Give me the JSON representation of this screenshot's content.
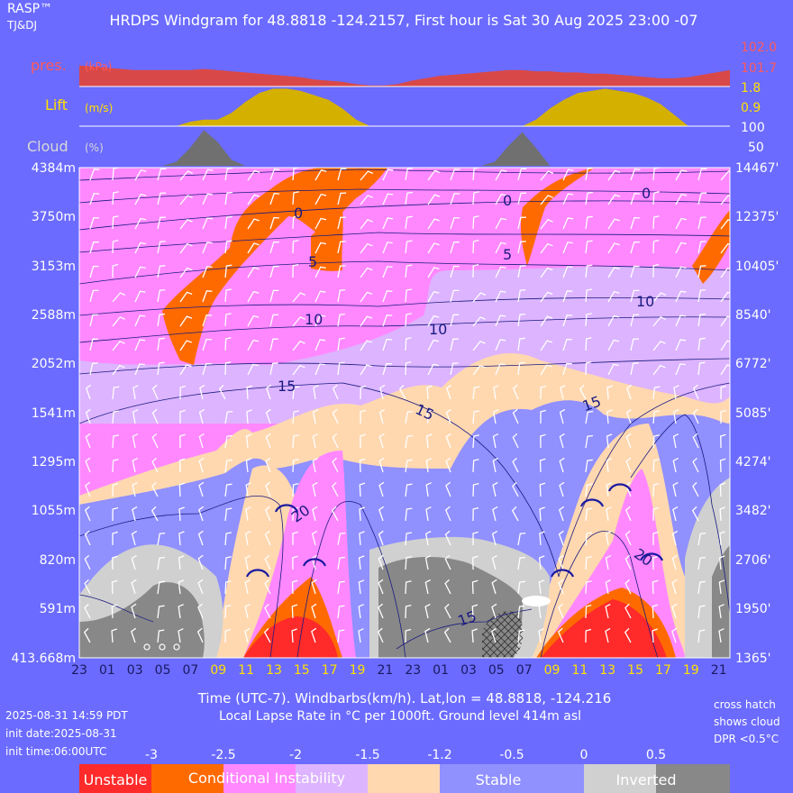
{
  "header": {
    "brand": "RASP™",
    "credit": "TJ&DJ",
    "title": "HRDPS Windgram for 48.8818 -124.2157, First hour is Sat 30 Aug 2025 23:00 -07"
  },
  "footer": {
    "xlabel": "Time (UTC-7). Windbarbs(km/h). Lat,lon = 48.8818, -124.216",
    "subtitle": "Local Lapse Rate in °C per 1000ft.   Ground level 414m asl",
    "run_time": "2025-08-31 14:59 PDT",
    "init_date": "init date:2025-08-31",
    "init_time": "init time:06:00UTC",
    "note_1": "cross hatch",
    "note_2": "shows cloud",
    "note_3": "DPR <0.5°C"
  },
  "colors": {
    "background": "#6b6bff",
    "pressure": "#d94848",
    "lift": "#d4b000",
    "cloud": "#707070",
    "unstable": "#ff2a2a",
    "conditional": "#ff6a00",
    "pink": "#ff88ff",
    "lavender": "#dcb4ff",
    "peach": "#ffd8b0",
    "stable": "#9090ff",
    "inverted_light": "#d0d0d0",
    "inverted_dark": "#888888"
  },
  "chart_data": [
    {
      "type": "area",
      "label": "pres.",
      "unit": "(kPa)",
      "right_ticks": [
        "102.0",
        "101.7"
      ],
      "ylim": [
        101.6,
        102.0
      ],
      "x": [
        "23",
        "00",
        "01",
        "02",
        "03",
        "04",
        "05",
        "06",
        "07",
        "08",
        "09",
        "10",
        "11",
        "12",
        "13",
        "14",
        "15",
        "16",
        "17",
        "18",
        "19",
        "20",
        "21",
        "22",
        "23",
        "00",
        "01",
        "02",
        "03",
        "04",
        "05",
        "06",
        "07",
        "08",
        "09",
        "10",
        "11",
        "12",
        "13",
        "14",
        "15",
        "16",
        "17",
        "18",
        "19",
        "20",
        "21",
        "22"
      ],
      "values": [
        101.78,
        101.77,
        101.76,
        101.75,
        101.74,
        101.74,
        101.74,
        101.74,
        101.74,
        101.75,
        101.74,
        101.73,
        101.72,
        101.71,
        101.7,
        101.69,
        101.68,
        101.66,
        101.65,
        101.64,
        101.62,
        101.61,
        101.61,
        101.62,
        101.65,
        101.67,
        101.69,
        101.7,
        101.71,
        101.72,
        101.73,
        101.74,
        101.74,
        101.73,
        101.73,
        101.72,
        101.72,
        101.71,
        101.71,
        101.7,
        101.69,
        101.68,
        101.67,
        101.67,
        101.68,
        101.7,
        101.72,
        101.74
      ]
    },
    {
      "type": "area",
      "label": "Lift",
      "unit": "(m/s)",
      "right_ticks": [
        "1.8",
        "0.9"
      ],
      "ylim": [
        0,
        1.8
      ],
      "x": [
        "23",
        "00",
        "01",
        "02",
        "03",
        "04",
        "05",
        "06",
        "07",
        "08",
        "09",
        "10",
        "11",
        "12",
        "13",
        "14",
        "15",
        "16",
        "17",
        "18",
        "19",
        "20",
        "21",
        "22",
        "23",
        "00",
        "01",
        "02",
        "03",
        "04",
        "05",
        "06",
        "07",
        "08",
        "09",
        "10",
        "11",
        "12",
        "13",
        "14",
        "15",
        "16",
        "17",
        "18",
        "19",
        "20",
        "21",
        "22"
      ],
      "values": [
        0,
        0,
        0,
        0,
        0,
        0,
        0,
        0,
        0.2,
        0.3,
        0.3,
        0.6,
        1.1,
        1.5,
        1.7,
        1.7,
        1.6,
        1.4,
        1.2,
        0.8,
        0.3,
        0,
        0,
        0,
        0,
        0,
        0,
        0,
        0,
        0,
        0,
        0,
        0,
        0.3,
        0.8,
        1.2,
        1.5,
        1.6,
        1.7,
        1.6,
        1.5,
        1.3,
        1.0,
        0.5,
        0,
        0,
        0,
        0
      ]
    },
    {
      "type": "area",
      "label": "Cloud",
      "unit": "(%)",
      "right_ticks": [
        "100",
        "50"
      ],
      "ylim": [
        0,
        100
      ],
      "x": [
        "23",
        "00",
        "01",
        "02",
        "03",
        "04",
        "05",
        "06",
        "07",
        "08",
        "09",
        "10",
        "11",
        "12",
        "13",
        "14",
        "15",
        "16",
        "17",
        "18",
        "19",
        "20",
        "21",
        "22",
        "23",
        "00",
        "01",
        "02",
        "03",
        "04",
        "05",
        "06",
        "07",
        "08",
        "09",
        "10",
        "11",
        "12",
        "13",
        "14",
        "15",
        "16",
        "17",
        "18",
        "19",
        "20",
        "21",
        "22"
      ],
      "values": [
        0,
        0,
        0,
        0,
        0,
        0,
        0,
        10,
        45,
        90,
        60,
        15,
        0,
        0,
        0,
        0,
        0,
        0,
        0,
        0,
        0,
        0,
        0,
        0,
        0,
        0,
        0,
        0,
        0,
        0,
        10,
        50,
        85,
        45,
        0,
        0,
        0,
        0,
        0,
        0,
        0,
        0,
        0,
        0,
        0,
        0,
        0,
        0
      ]
    },
    {
      "type": "heatmap",
      "title": "Local Lapse Rate in °C per 1000ft.",
      "xlabel": "Time (UTC-7)",
      "x_ticks": [
        "23",
        "01",
        "03",
        "05",
        "07",
        "09",
        "11",
        "13",
        "15",
        "17",
        "19",
        "21",
        "23",
        "01",
        "03",
        "05",
        "07",
        "09",
        "11",
        "13",
        "15",
        "17",
        "19",
        "21"
      ],
      "daytime_ticks": [
        "09",
        "11",
        "13",
        "15",
        "17",
        "19"
      ],
      "y_left": [
        "4384m",
        "3750m",
        "3153m",
        "2588m",
        "2052m",
        "1541m",
        "1295m",
        "1055m",
        "820m",
        "591m",
        "413.668m"
      ],
      "y_right": [
        "14467'",
        "12375'",
        "10405'",
        "8540'",
        "6772'",
        "5085'",
        "4274'",
        "3482'",
        "2706'",
        "1950'",
        "1365'"
      ],
      "isotherm_labels": [
        "0",
        "0",
        "0",
        "5",
        "5",
        "10",
        "10",
        "10",
        "15",
        "15",
        "15",
        "15",
        "20",
        "20"
      ],
      "legend_values": [
        "-3",
        "-2.5",
        "-2",
        "-1.5",
        "-1.2",
        "-0.5",
        "0",
        "0.5"
      ],
      "legend_labels": [
        "Unstable",
        "Conditional Instability",
        "Stable",
        "Inverted"
      ]
    }
  ]
}
